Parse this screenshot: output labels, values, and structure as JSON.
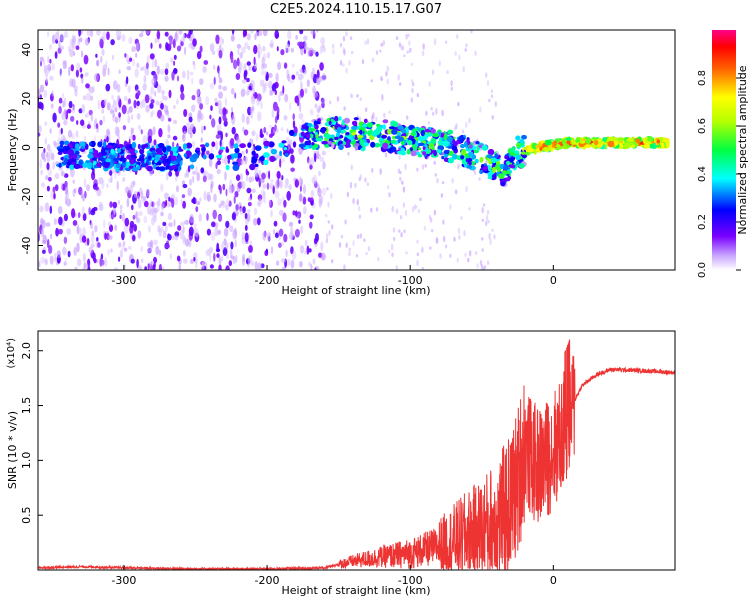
{
  "title": "C2E5.2024.110.15.17.G07",
  "chart_data": [
    {
      "type": "heatmap",
      "title": "C2E5.2024.110.15.17.G07",
      "xlabel": "Height of straight line (km)",
      "ylabel": "Frequency (Hz)",
      "xlim": [
        -360,
        85
      ],
      "ylim": [
        -50,
        48
      ],
      "xticks": [
        -300,
        -200,
        -100,
        0
      ],
      "yticks": [
        -40,
        -20,
        0,
        20,
        40
      ],
      "colorbar": {
        "label": "Normalized spectral amplitude",
        "range": [
          0,
          1
        ],
        "ticks": [
          "0.0",
          "0.2",
          "0.4",
          "0.6",
          "0.8"
        ]
      },
      "ridge": {
        "x": [
          -330,
          -300,
          -270,
          -200,
          -165,
          -140,
          -120,
          -100,
          -80,
          -60,
          -45,
          -35,
          -25,
          -10,
          0,
          10,
          40,
          80
        ],
        "y": [
          -3,
          -4,
          -4,
          -3,
          6,
          6,
          5,
          3,
          2,
          -2,
          -6,
          -10,
          -2,
          0,
          1,
          2,
          2,
          2
        ]
      },
      "grid": false
    },
    {
      "type": "line",
      "xlabel": "Height of straight line (km)",
      "ylabel": "SNR (10 * v/v)",
      "scale_label": "(x10⁴)",
      "xlim": [
        -360,
        85
      ],
      "ylim": [
        0,
        2.18
      ],
      "xticks": [
        -300,
        -200,
        -100,
        0
      ],
      "yticks": [
        0.5,
        1.0,
        1.5,
        2.0
      ],
      "series": [
        {
          "color": "#ee3333",
          "x": [
            -360,
            -330,
            -300,
            -250,
            -200,
            -160,
            -140,
            -120,
            -100,
            -80,
            -60,
            -50,
            -40,
            -30,
            -25,
            -20,
            -15,
            -10,
            -5,
            0,
            5,
            10,
            15,
            20,
            30,
            40,
            60,
            85
          ],
          "y": [
            0.02,
            0.03,
            0.02,
            0.01,
            0.01,
            0.02,
            0.08,
            0.12,
            0.15,
            0.22,
            0.32,
            0.35,
            0.45,
            0.6,
            0.8,
            1.15,
            1.0,
            0.95,
            1.0,
            1.1,
            1.2,
            1.35,
            1.55,
            1.68,
            1.78,
            1.83,
            1.82,
            1.8
          ]
        }
      ],
      "grid": false
    }
  ]
}
